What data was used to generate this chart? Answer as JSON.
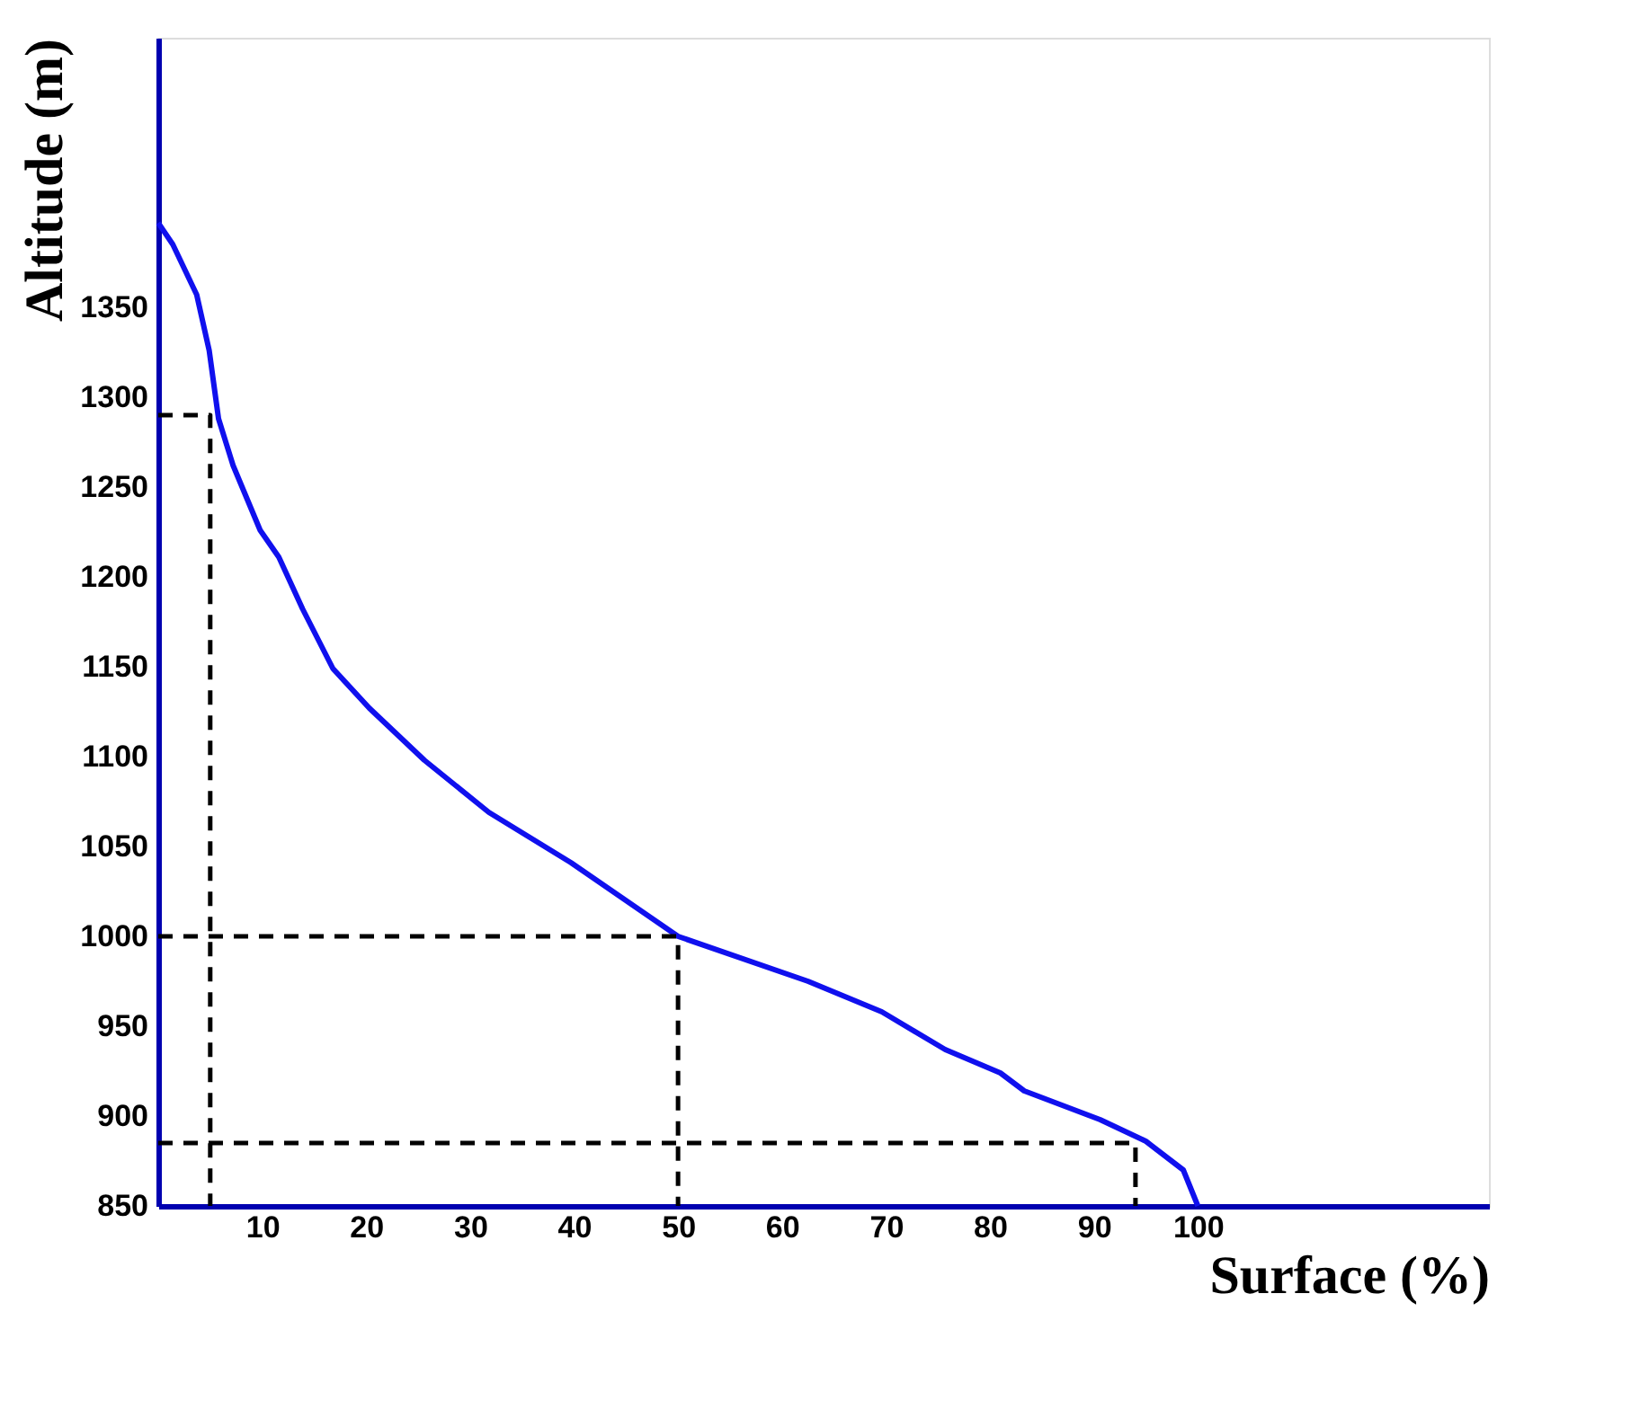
{
  "chart_data": {
    "type": "line",
    "xlabel": "Surface (%)",
    "ylabel": "Altitude (m)",
    "xlim": [
      0,
      128
    ],
    "ylim": [
      850,
      1500
    ],
    "xticks": [
      10,
      20,
      30,
      40,
      50,
      60,
      70,
      80,
      90,
      100
    ],
    "yticks": [
      850,
      900,
      950,
      1000,
      1050,
      1100,
      1150,
      1200,
      1250,
      1300,
      1350
    ],
    "grid": false,
    "marker": "none",
    "series": [
      {
        "color": "#1010ee",
        "line_style": "solid",
        "x": [
          0,
          1.4,
          3.7,
          4.9,
          5.8,
          7.2,
          9.8,
          11.6,
          13.9,
          16.8,
          20.3,
          25.6,
          31.8,
          39.7,
          50,
          62.5,
          69.6,
          75.7,
          81,
          83.3,
          90.6,
          95,
          98.6,
          100
        ],
        "values": [
          1397,
          1385,
          1357,
          1326,
          1288,
          1262,
          1226,
          1211,
          1182,
          1149,
          1127,
          1098,
          1069,
          1041,
          1000,
          975,
          958,
          937,
          924,
          914,
          898,
          886,
          870,
          850
        ]
      },
      {
        "color": "#000000",
        "line_style": "dashed",
        "x": [
          0,
          5,
          5
        ],
        "values": [
          1290,
          1290,
          850
        ]
      },
      {
        "color": "#000000",
        "line_style": "dashed",
        "x": [
          0,
          50,
          50
        ],
        "values": [
          1000,
          1000,
          850
        ]
      },
      {
        "color": "#000000",
        "line_style": "dashed",
        "x": [
          0,
          94,
          94
        ],
        "values": [
          885,
          885,
          850
        ]
      }
    ]
  }
}
